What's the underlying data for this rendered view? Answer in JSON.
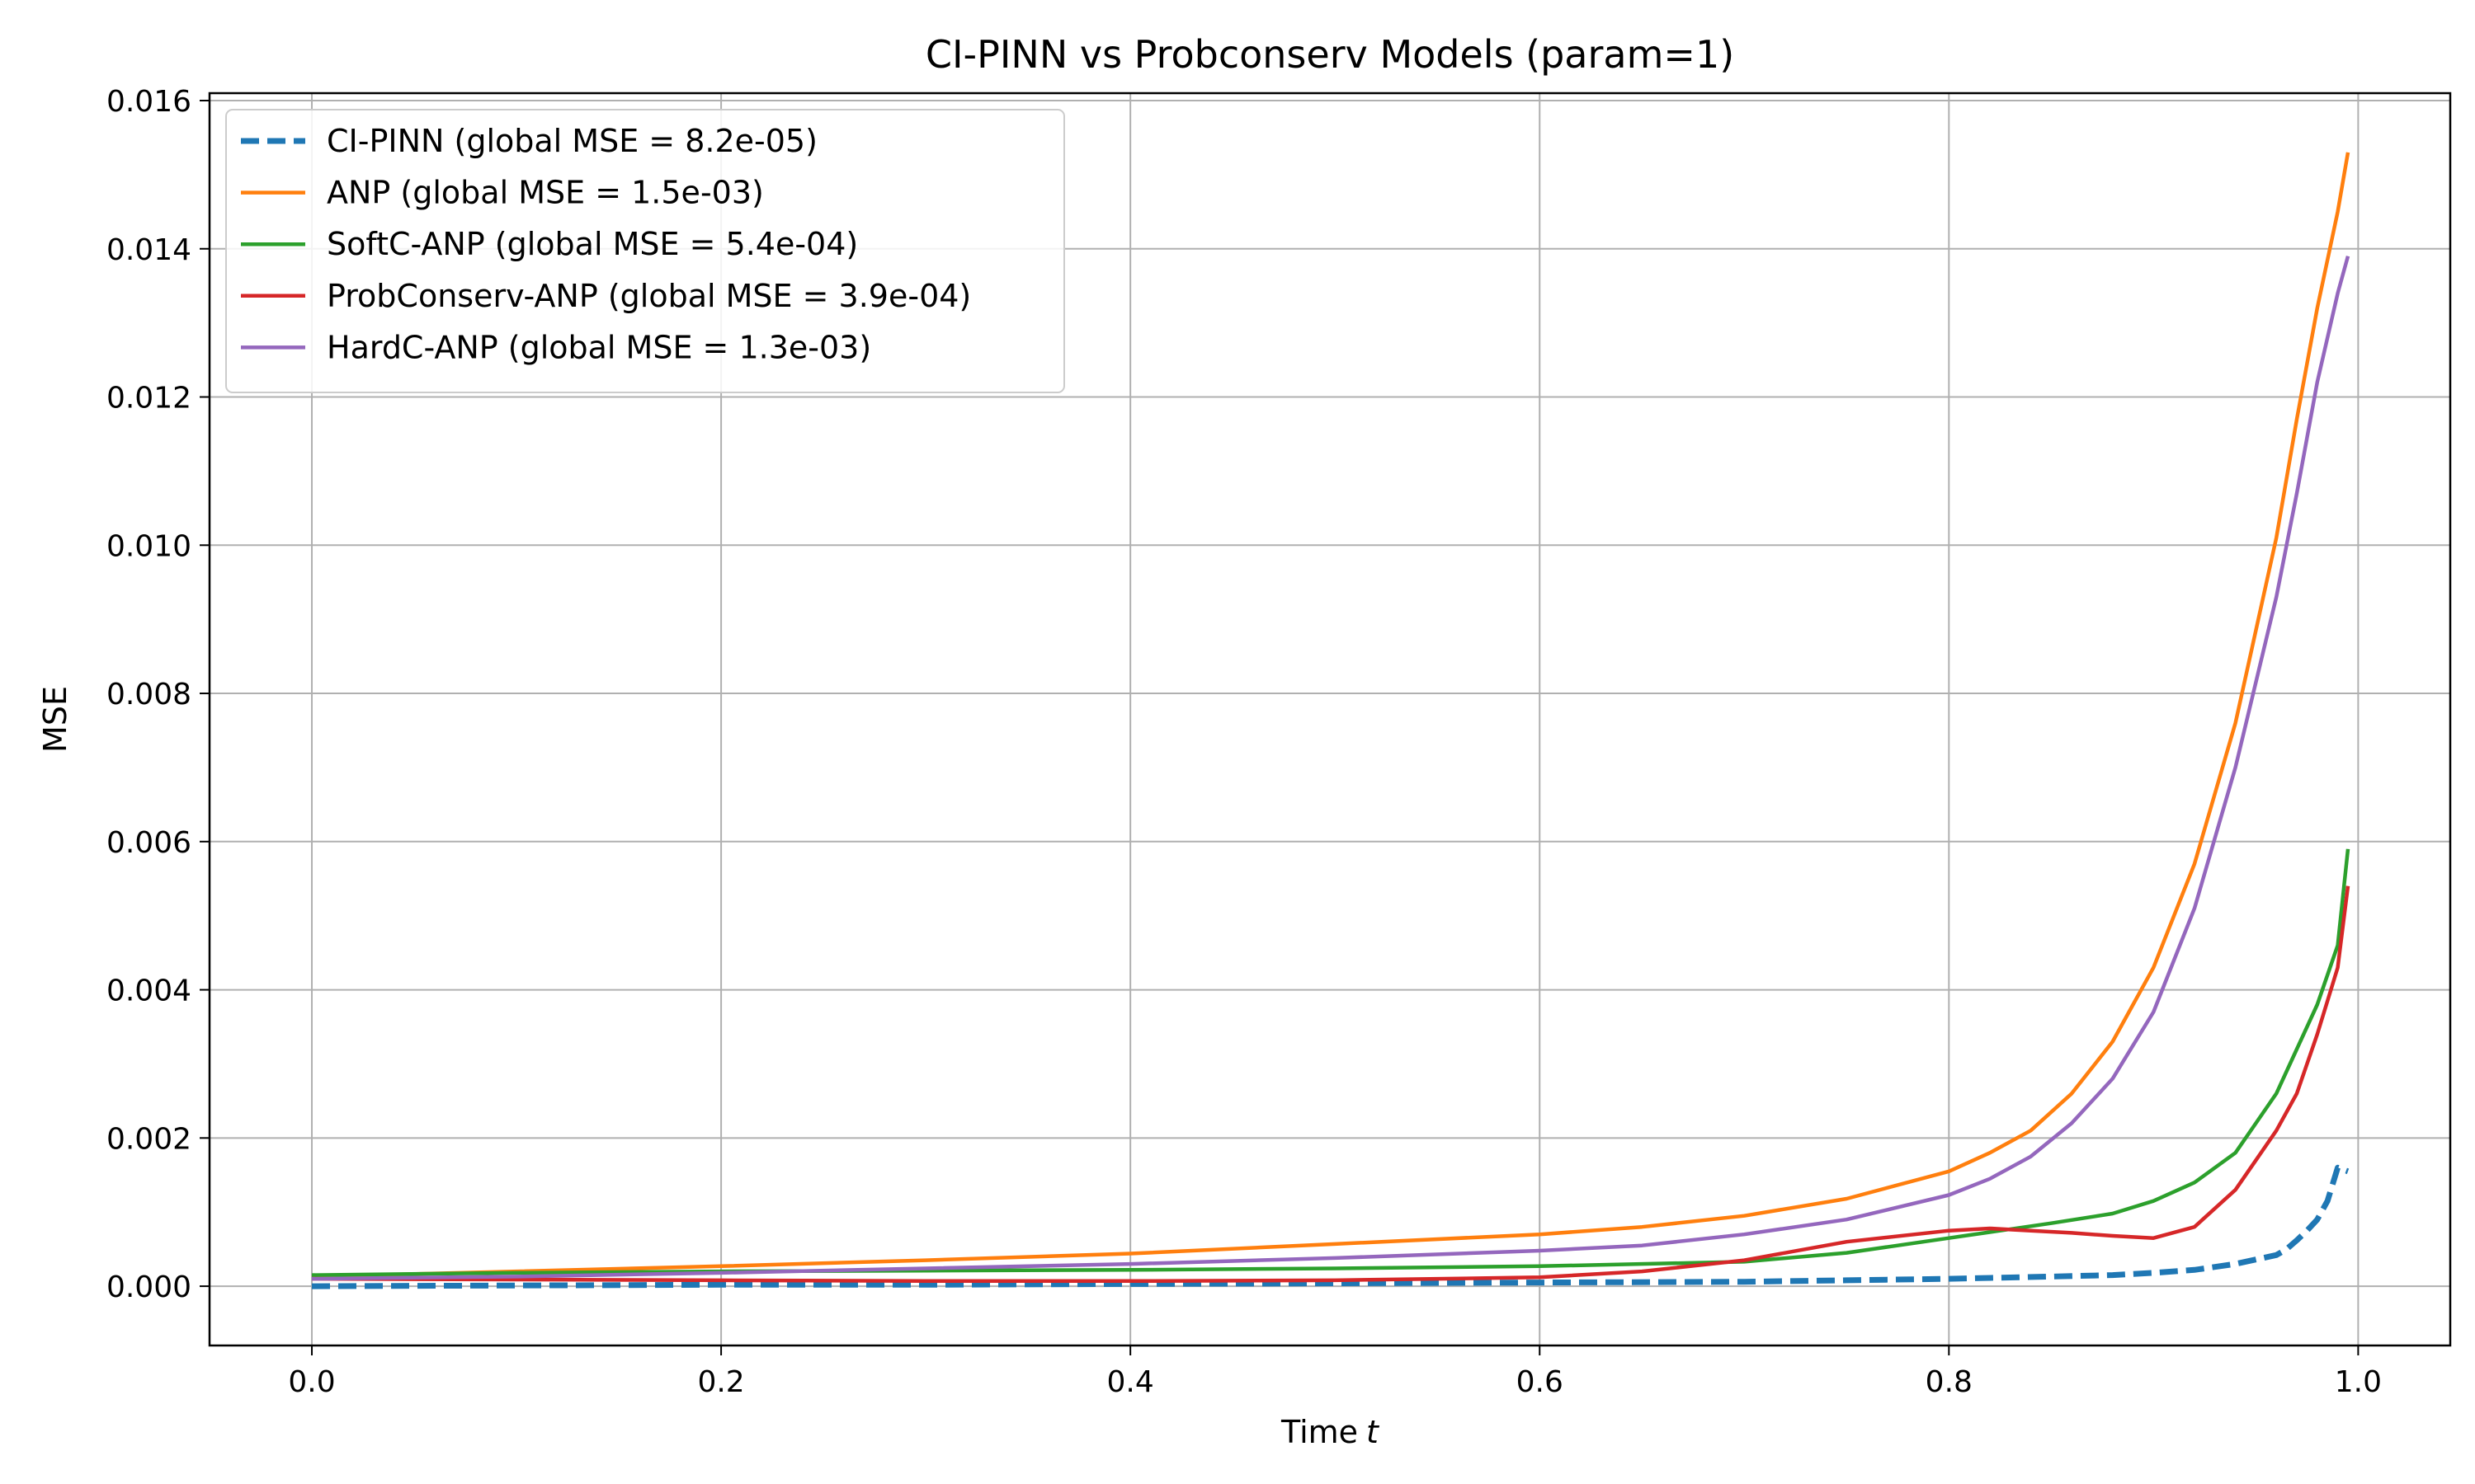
{
  "chart_data": {
    "type": "line",
    "title": "CI-PINN vs Probconserv Models (param=1)",
    "xlabel": "Time",
    "xlabel_italic": "t",
    "ylabel": "MSE",
    "xlim": [
      -0.05,
      1.045
    ],
    "ylim": [
      -0.0008,
      0.0161
    ],
    "x_ticks": [
      0.0,
      0.2,
      0.4,
      0.6,
      0.8,
      1.0
    ],
    "x_tick_labels": [
      "0.0",
      "0.2",
      "0.4",
      "0.6",
      "0.8",
      "1.0"
    ],
    "y_ticks": [
      0.0,
      0.002,
      0.004,
      0.006,
      0.008,
      0.01,
      0.012,
      0.014,
      0.016
    ],
    "y_tick_labels": [
      "0.000",
      "0.002",
      "0.004",
      "0.006",
      "0.008",
      "0.010",
      "0.012",
      "0.014",
      "0.016"
    ],
    "grid": true,
    "legend_position": "upper-left",
    "series": [
      {
        "name": "CI-PINN (global MSE = 8.2e-05)",
        "color": "#1f77b4",
        "style": "dashed",
        "x": [
          0.0,
          0.1,
          0.2,
          0.3,
          0.4,
          0.5,
          0.6,
          0.7,
          0.75,
          0.8,
          0.85,
          0.88,
          0.9,
          0.92,
          0.93,
          0.94,
          0.95,
          0.96,
          0.965,
          0.97,
          0.975,
          0.98,
          0.985,
          0.99,
          0.995
        ],
        "y": [
          0.0,
          1e-05,
          2e-05,
          2e-05,
          3e-05,
          4e-05,
          5e-05,
          6e-05,
          8e-05,
          0.0001,
          0.00013,
          0.00015,
          0.00018,
          0.00022,
          0.00026,
          0.0003,
          0.00036,
          0.00042,
          0.0005,
          0.00062,
          0.00075,
          0.0009,
          0.00115,
          0.0016,
          0.00155
        ]
      },
      {
        "name": "ANP (global MSE = 1.5e-03)",
        "color": "#ff7f0e",
        "style": "solid",
        "x": [
          0.0,
          0.1,
          0.2,
          0.3,
          0.4,
          0.5,
          0.6,
          0.65,
          0.7,
          0.75,
          0.8,
          0.82,
          0.84,
          0.86,
          0.88,
          0.9,
          0.92,
          0.94,
          0.96,
          0.97,
          0.98,
          0.99,
          0.995
        ],
        "y": [
          0.00013,
          0.0002,
          0.00027,
          0.00035,
          0.00044,
          0.00057,
          0.0007,
          0.0008,
          0.00095,
          0.00118,
          0.00155,
          0.0018,
          0.0021,
          0.0026,
          0.0033,
          0.0043,
          0.0057,
          0.0076,
          0.0101,
          0.0117,
          0.0132,
          0.0145,
          0.0153
        ]
      },
      {
        "name": "SoftC-ANP (global MSE = 5.4e-04)",
        "color": "#2ca02c",
        "style": "solid",
        "x": [
          0.0,
          0.1,
          0.2,
          0.3,
          0.4,
          0.5,
          0.6,
          0.7,
          0.75,
          0.8,
          0.85,
          0.88,
          0.9,
          0.92,
          0.94,
          0.95,
          0.96,
          0.97,
          0.98,
          0.99,
          0.995
        ],
        "y": [
          0.00015,
          0.00018,
          0.0002,
          0.00021,
          0.00022,
          0.00024,
          0.00027,
          0.00033,
          0.00045,
          0.00065,
          0.00085,
          0.00098,
          0.00115,
          0.0014,
          0.0018,
          0.0022,
          0.0026,
          0.0032,
          0.0038,
          0.0046,
          0.0059
        ]
      },
      {
        "name": "ProbConserv-ANP (global MSE = 3.9e-04)",
        "color": "#d62728",
        "style": "solid",
        "x": [
          0.0,
          0.1,
          0.2,
          0.3,
          0.4,
          0.5,
          0.6,
          0.65,
          0.7,
          0.75,
          0.8,
          0.82,
          0.84,
          0.86,
          0.88,
          0.9,
          0.92,
          0.94,
          0.95,
          0.96,
          0.97,
          0.98,
          0.99,
          0.995
        ],
        "y": [
          0.0001,
          9e-05,
          8e-05,
          7e-05,
          7e-05,
          8e-05,
          0.00012,
          0.0002,
          0.00035,
          0.0006,
          0.00075,
          0.00078,
          0.00075,
          0.00072,
          0.00068,
          0.00065,
          0.0008,
          0.0013,
          0.0017,
          0.0021,
          0.0026,
          0.0034,
          0.0043,
          0.0054
        ]
      },
      {
        "name": "HardC-ANP (global MSE = 1.3e-03)",
        "color": "#9467bd",
        "style": "solid",
        "x": [
          0.0,
          0.1,
          0.2,
          0.3,
          0.4,
          0.5,
          0.6,
          0.65,
          0.7,
          0.75,
          0.8,
          0.82,
          0.84,
          0.86,
          0.88,
          0.9,
          0.92,
          0.94,
          0.96,
          0.97,
          0.98,
          0.99,
          0.995
        ],
        "y": [
          0.0001,
          0.00013,
          0.00018,
          0.00024,
          0.0003,
          0.00038,
          0.00048,
          0.00055,
          0.0007,
          0.0009,
          0.00123,
          0.00145,
          0.00175,
          0.0022,
          0.0028,
          0.0037,
          0.0051,
          0.007,
          0.0093,
          0.0107,
          0.0122,
          0.0134,
          0.0139
        ]
      }
    ]
  }
}
